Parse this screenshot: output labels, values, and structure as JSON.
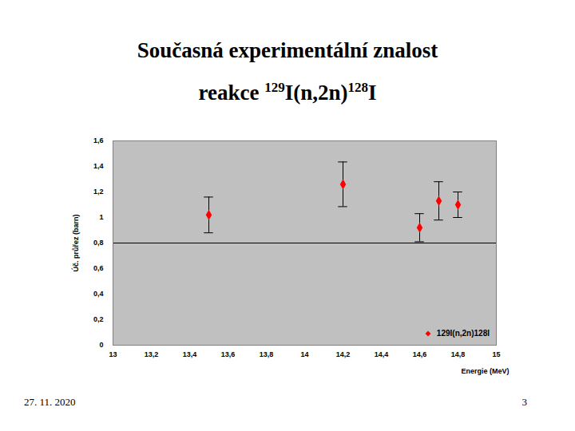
{
  "chart_data": {
    "type": "scatter",
    "title": "Současná experimentální znalost",
    "subtitle": "reakce 129I(n,2n)128I",
    "x_label": "Energie (MeV)",
    "y_label": "Úč. průřez (barn)",
    "x": [
      13.5,
      14.2,
      14.6,
      14.7,
      14.8
    ],
    "series": [
      {
        "name": "129I(n,2n)128I",
        "color": "#ff0000",
        "marker": "diamond",
        "values": [
          1.02,
          1.26,
          0.92,
          1.13,
          1.1
        ],
        "errors": [
          0.14,
          0.175,
          0.11,
          0.15,
          0.1
        ]
      }
    ],
    "hline": 0.8,
    "xlim": [
      13,
      15
    ],
    "xticks": [
      13,
      {
        "value": 13.2,
        "label": "13,2"
      },
      {
        "value": 13.4,
        "label": "13,4"
      },
      {
        "value": 13.6,
        "label": "13,6"
      },
      {
        "value": 13.8,
        "label": "13,8"
      },
      14,
      {
        "value": 14.2,
        "label": "14,2"
      },
      {
        "value": 14.4,
        "label": "14,4"
      },
      {
        "value": 14.6,
        "label": "14,6"
      },
      {
        "value": 14.8,
        "label": "14,8"
      },
      15
    ],
    "ylim": [
      0,
      1.6
    ],
    "yticks": [
      0,
      {
        "value": 0.2,
        "label": "0,2"
      },
      {
        "value": 0.4,
        "label": "0,4"
      },
      {
        "value": 0.6,
        "label": "0,6"
      },
      {
        "value": 0.8,
        "label": "0,8"
      },
      1,
      {
        "value": 1.2,
        "label": "1,2"
      },
      {
        "value": 1.4,
        "label": "1,4"
      },
      {
        "value": 1.6,
        "label": "1,6"
      }
    ],
    "legend": "bottom-right",
    "grid": false
  },
  "slide": {
    "date": "27. 11. 2020",
    "page": 3
  }
}
